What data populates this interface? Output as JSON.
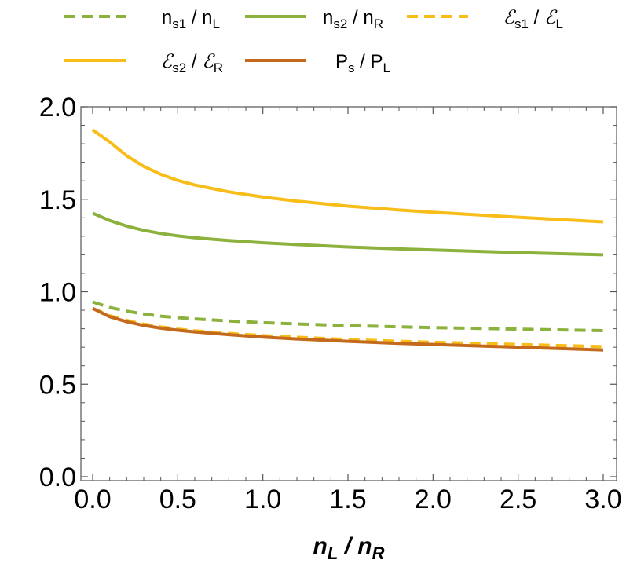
{
  "chart_data": {
    "type": "line",
    "xlabel": {
      "main1": "n",
      "sub1": "L",
      "sep": " / ",
      "main2": "n",
      "sub2": "R"
    },
    "xlim": [
      0,
      3
    ],
    "ylim": [
      0,
      2
    ],
    "xticks": [
      0.0,
      0.5,
      1.0,
      1.5,
      2.0,
      2.5,
      3.0
    ],
    "xtick_labels": [
      "0.0",
      "0.5",
      "1.0",
      "1.5",
      "2.0",
      "2.5",
      "3.0"
    ],
    "yticks": [
      0.0,
      0.5,
      1.0,
      1.5,
      2.0
    ],
    "ytick_labels": [
      "0.0",
      "0.5",
      "1.0",
      "1.5",
      "2.0"
    ],
    "grid": false,
    "legend_placement": "top",
    "series": [
      {
        "id": "ns1",
        "label": {
          "main1": "n",
          "sub1": "s1",
          "sep": " / ",
          "main2": "n",
          "sub2": "L",
          "script": false
        },
        "color": "#8CB13D",
        "dashed": true,
        "x": [
          0,
          0.1,
          0.2,
          0.3,
          0.4,
          0.5,
          0.6,
          0.8,
          1.0,
          1.2,
          1.5,
          1.8,
          2.0,
          2.5,
          3.0
        ],
        "values": [
          0.945,
          0.915,
          0.895,
          0.88,
          0.868,
          0.86,
          0.853,
          0.842,
          0.833,
          0.826,
          0.817,
          0.81,
          0.806,
          0.798,
          0.79
        ]
      },
      {
        "id": "ns2",
        "label": {
          "main1": "n",
          "sub1": "s2",
          "sep": " / ",
          "main2": "n",
          "sub2": "R",
          "script": false
        },
        "color": "#8CB13D",
        "dashed": false,
        "x": [
          0,
          0.1,
          0.2,
          0.3,
          0.4,
          0.5,
          0.6,
          0.8,
          1.0,
          1.2,
          1.5,
          1.8,
          2.0,
          2.5,
          3.0
        ],
        "values": [
          1.425,
          1.385,
          1.355,
          1.332,
          1.315,
          1.302,
          1.292,
          1.277,
          1.265,
          1.255,
          1.242,
          1.232,
          1.226,
          1.212,
          1.2
        ]
      },
      {
        "id": "es1",
        "label": {
          "main1": "ℰ",
          "sub1": "s1",
          "sep": " / ",
          "main2": "ℰ",
          "sub2": "L",
          "script": true
        },
        "color": "#F8BD19",
        "dashed": true,
        "x": [
          0,
          0.1,
          0.2,
          0.3,
          0.4,
          0.5,
          0.6,
          0.8,
          1.0,
          1.2,
          1.5,
          1.8,
          2.0,
          2.5,
          3.0
        ],
        "values": [
          0.91,
          0.87,
          0.845,
          0.825,
          0.81,
          0.798,
          0.789,
          0.775,
          0.763,
          0.754,
          0.742,
          0.732,
          0.727,
          0.715,
          0.703
        ]
      },
      {
        "id": "es2",
        "label": {
          "main1": "ℰ",
          "sub1": "s2",
          "sep": " / ",
          "main2": "ℰ",
          "sub2": "R",
          "script": true
        },
        "color": "#F8BD19",
        "dashed": false,
        "x": [
          0,
          0.1,
          0.2,
          0.3,
          0.4,
          0.5,
          0.6,
          0.8,
          1.0,
          1.2,
          1.5,
          1.8,
          2.0,
          2.5,
          3.0
        ],
        "values": [
          1.875,
          1.81,
          1.735,
          1.678,
          1.635,
          1.602,
          1.577,
          1.54,
          1.512,
          1.49,
          1.463,
          1.442,
          1.43,
          1.403,
          1.378
        ]
      },
      {
        "id": "ps",
        "label": {
          "main1": "P",
          "sub1": "s",
          "sep": " / ",
          "main2": "P",
          "sub2": "L",
          "script": false
        },
        "color": "#C46A1C",
        "dashed": false,
        "x": [
          0,
          0.1,
          0.2,
          0.3,
          0.4,
          0.5,
          0.6,
          0.8,
          1.0,
          1.2,
          1.5,
          1.8,
          2.0,
          2.5,
          3.0
        ],
        "values": [
          0.91,
          0.865,
          0.838,
          0.818,
          0.803,
          0.792,
          0.783,
          0.768,
          0.755,
          0.745,
          0.732,
          0.721,
          0.715,
          0.7,
          0.685
        ]
      }
    ]
  }
}
